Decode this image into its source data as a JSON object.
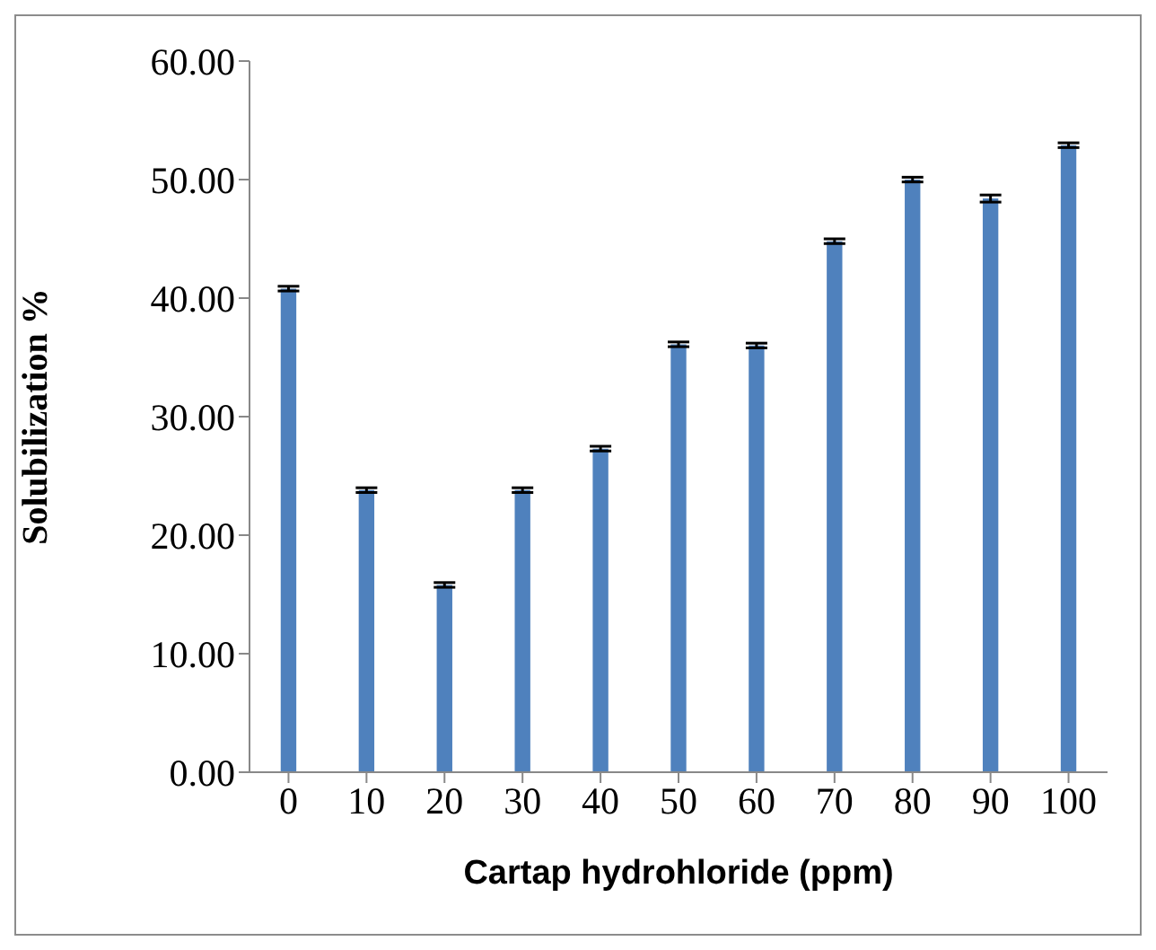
{
  "chart_data": {
    "type": "bar",
    "xlabel": "Cartap hydrohloride (ppm)",
    "ylabel": "Solubilization %",
    "categories": [
      "0",
      "10",
      "20",
      "30",
      "40",
      "50",
      "60",
      "70",
      "80",
      "90",
      "100"
    ],
    "values": [
      40.8,
      23.8,
      15.8,
      23.8,
      27.3,
      36.1,
      36.0,
      44.8,
      50.0,
      48.4,
      52.9
    ],
    "errors": [
      0.2,
      0.2,
      0.2,
      0.2,
      0.2,
      0.2,
      0.2,
      0.2,
      0.2,
      0.3,
      0.2
    ],
    "color": "#4f81bd",
    "ylim": [
      0,
      60
    ],
    "yticks": [
      {
        "value": 0,
        "label": "0.00"
      },
      {
        "value": 10,
        "label": "10.00"
      },
      {
        "value": 20,
        "label": "20.00"
      },
      {
        "value": 30,
        "label": "30.00"
      },
      {
        "value": 40,
        "label": "40.00"
      },
      {
        "value": 50,
        "label": "50.00"
      },
      {
        "value": 60,
        "label": "60.00"
      }
    ],
    "grid": false,
    "legend": false
  }
}
